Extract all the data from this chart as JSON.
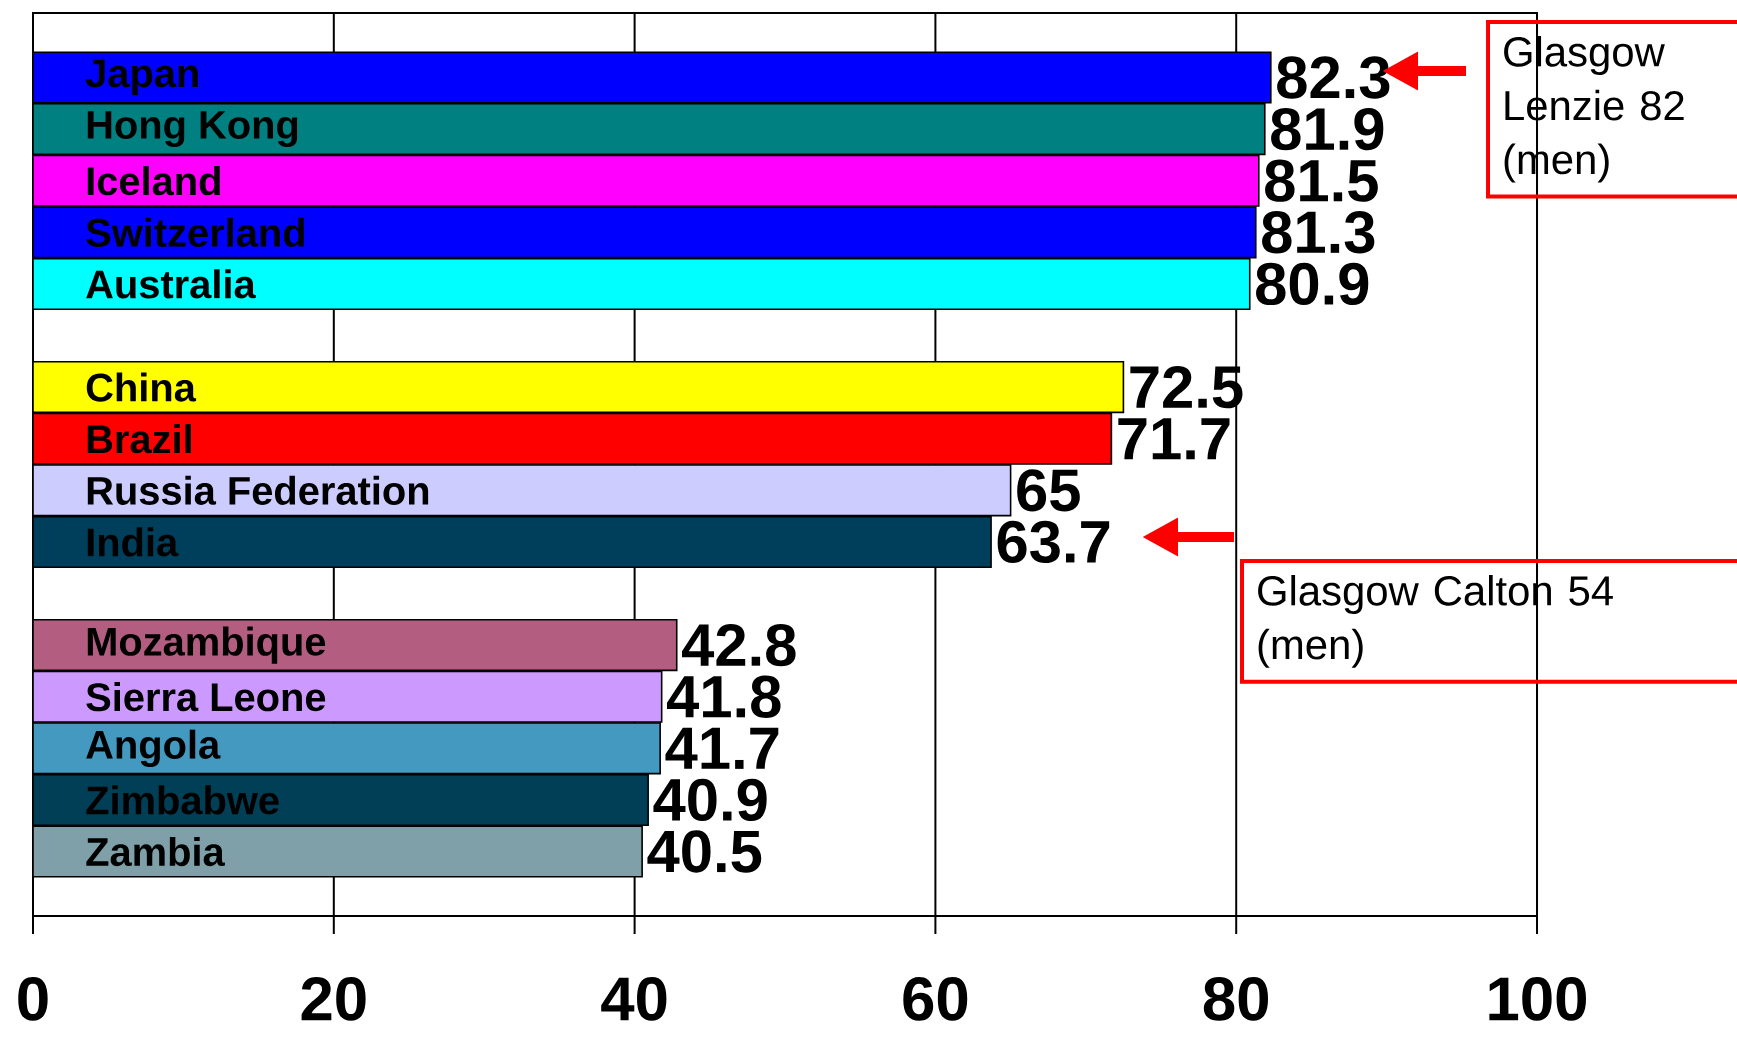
{
  "chart_data": {
    "type": "bar",
    "orientation": "horizontal",
    "data_labels": true,
    "grid": "x",
    "categories": [
      "Japan",
      "Hong Kong",
      "Iceland",
      "Switzerland",
      "Australia",
      null,
      "China",
      "Brazil",
      "Russia Federation",
      "India",
      null,
      "Mozambique",
      "Sierra Leone",
      "Angola",
      "Zimbabwe",
      "Zambia"
    ],
    "values": [
      82.3,
      81.9,
      81.5,
      81.3,
      80.9,
      null,
      72.5,
      71.7,
      65,
      63.7,
      null,
      42.8,
      41.8,
      41.7,
      40.9,
      40.5
    ],
    "colors": [
      "#0000ff",
      "#008080",
      "#ff00ff",
      "#0000ff",
      "#00ffff",
      null,
      "#ffff00",
      "#ff0000",
      "#ccccff",
      "#003f5c",
      null,
      "#b35e80",
      "#cc99ff",
      "#4499c0",
      "#003f55",
      "#7fa0a8"
    ],
    "xlim": [
      0,
      100
    ],
    "xticks": [
      0,
      20,
      40,
      60,
      80,
      100
    ],
    "annotations": [
      "Glasgow Lenzie 82 (men)",
      "Glasgow Calton 54 (men)"
    ]
  }
}
